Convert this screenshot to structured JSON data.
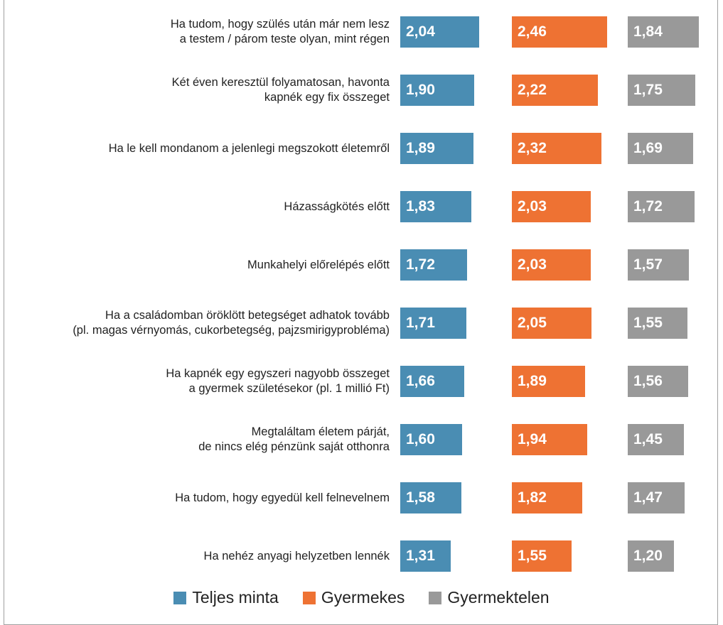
{
  "chart_data": {
    "type": "bar",
    "orientation": "horizontal",
    "categories": [
      "Ha tudom, hogy szülés után már nem lesz\na testem / párom teste olyan, mint régen",
      "Két éven keresztül folyamatosan, havonta\nkapnék egy fix összeget",
      "Ha le kell mondanom a jelenlegi megszokott életemről",
      "Házasságkötés előtt",
      "Munkahelyi előrelépés előtt",
      "Ha a családomban öröklött betegséget adhatok tovább\n(pl. magas vérnyomás, cukorbetegség, pajzsmirigyprobléma)",
      "Ha kapnék egy egyszeri nagyobb összeget\na gyermek születésekor (pl. 1 millió Ft)",
      "Megtaláltam életem párját,\nde nincs elég pénzünk saját otthonra",
      "Ha tudom, hogy egyedül kell felnevelnem",
      "Ha nehéz anyagi helyzetben lennék"
    ],
    "series": [
      {
        "name": "Teljes minta",
        "color": "#4a8db3",
        "values": [
          2.04,
          1.9,
          1.89,
          1.83,
          1.72,
          1.71,
          1.66,
          1.6,
          1.58,
          1.31
        ],
        "value_labels": [
          "2,04",
          "1,90",
          "1,89",
          "1,83",
          "1,72",
          "1,71",
          "1,66",
          "1,60",
          "1,58",
          "1,31"
        ]
      },
      {
        "name": "Gyermekes",
        "color": "#ee7233",
        "values": [
          2.46,
          2.22,
          2.32,
          2.03,
          2.03,
          2.05,
          1.89,
          1.94,
          1.82,
          1.55
        ],
        "value_labels": [
          "2,46",
          "2,22",
          "2,32",
          "2,03",
          "2,03",
          "2,05",
          "1,89",
          "1,94",
          "1,82",
          "1,55"
        ]
      },
      {
        "name": "Gyermektelen",
        "color": "#999999",
        "values": [
          1.84,
          1.75,
          1.69,
          1.72,
          1.57,
          1.55,
          1.56,
          1.45,
          1.47,
          1.2
        ],
        "value_labels": [
          "1,84",
          "1,75",
          "1,69",
          "1,72",
          "1,57",
          "1,55",
          "1,56",
          "1,45",
          "1,47",
          "1,20"
        ]
      }
    ],
    "legend": "bottom"
  }
}
